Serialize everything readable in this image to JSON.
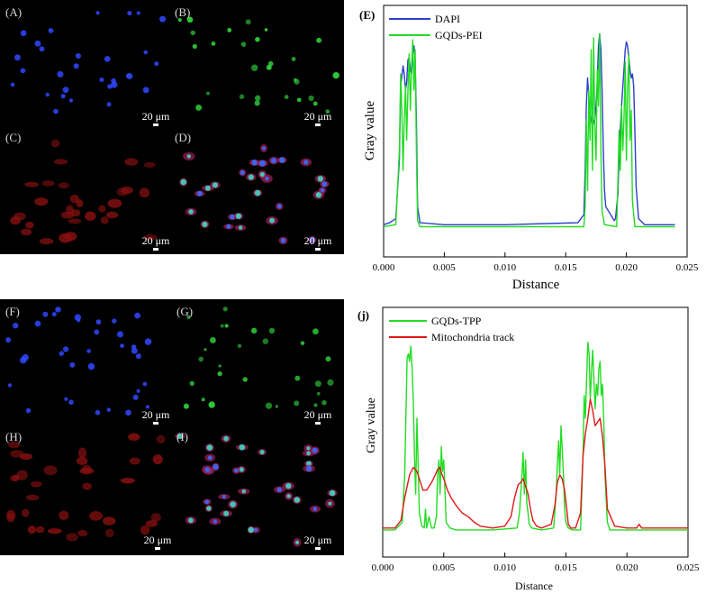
{
  "figure_top": {
    "panel_labels": [
      "(A)",
      "(B)",
      "(C)",
      "(D)"
    ],
    "scale_bar": "20 μm"
  },
  "figure_bottom": {
    "panel_labels": [
      "(F)",
      "(G)",
      "(H)",
      "(I)"
    ],
    "scale_bar": "20 μm"
  },
  "colors": {
    "dapi": "#2b3fc9",
    "gqds": "#22dd22",
    "mito": "#e01818"
  },
  "chart_data": [
    {
      "type": "line",
      "panel_label": "(E)",
      "xlabel": "Distance",
      "ylabel": "Gray value",
      "xlim": [
        0.0,
        0.025
      ],
      "xticks": [
        "0.000",
        "0.005",
        "0.010",
        "0.015",
        "0.020",
        "0.025"
      ],
      "legend_position": "top-left",
      "series": [
        {
          "name": "DAPI",
          "color": "#2b3fc9",
          "x": [
            0.0,
            0.0005,
            0.001,
            0.0013,
            0.0014,
            0.0016,
            0.0017,
            0.0018,
            0.0019,
            0.002,
            0.0021,
            0.0022,
            0.0023,
            0.0024,
            0.0025,
            0.0026,
            0.0027,
            0.0028,
            0.003,
            0.005,
            0.01,
            0.016,
            0.0165,
            0.0166,
            0.0167,
            0.0168,
            0.017,
            0.0172,
            0.0174,
            0.0175,
            0.0176,
            0.0177,
            0.0178,
            0.0179,
            0.018,
            0.0181,
            0.0182,
            0.0183,
            0.0185,
            0.0187,
            0.0189,
            0.019,
            0.0191,
            0.0192,
            0.0193,
            0.0194,
            0.0196,
            0.0198,
            0.0199,
            0.02,
            0.0201,
            0.0202,
            0.0203,
            0.0204,
            0.0205,
            0.0206,
            0.0207,
            0.0208,
            0.021,
            0.0215,
            0.024
          ],
          "y": [
            0.03,
            0.04,
            0.06,
            0.35,
            0.72,
            0.82,
            0.78,
            0.7,
            0.74,
            0.85,
            0.86,
            0.8,
            0.78,
            0.88,
            0.92,
            0.86,
            0.55,
            0.12,
            0.04,
            0.03,
            0.03,
            0.04,
            0.08,
            0.3,
            0.62,
            0.76,
            0.58,
            0.52,
            0.56,
            0.62,
            0.74,
            0.92,
            0.98,
            0.9,
            0.7,
            0.4,
            0.2,
            0.12,
            0.1,
            0.08,
            0.06,
            0.05,
            0.06,
            0.12,
            0.18,
            0.38,
            0.62,
            0.8,
            0.9,
            0.94,
            0.92,
            0.86,
            0.8,
            0.76,
            0.78,
            0.72,
            0.5,
            0.22,
            0.06,
            0.03,
            0.03
          ]
        },
        {
          "name": "GQDs-PEI",
          "color": "#22dd22",
          "x": [
            0.0,
            0.001,
            0.0013,
            0.0014,
            0.0015,
            0.0016,
            0.0017,
            0.0018,
            0.0019,
            0.002,
            0.0021,
            0.0022,
            0.0023,
            0.0024,
            0.0025,
            0.0026,
            0.0027,
            0.0028,
            0.003,
            0.01,
            0.0165,
            0.0166,
            0.0167,
            0.0168,
            0.0169,
            0.017,
            0.0171,
            0.0172,
            0.0173,
            0.0174,
            0.0175,
            0.0176,
            0.0177,
            0.0178,
            0.0179,
            0.018,
            0.0182,
            0.0192,
            0.0193,
            0.0194,
            0.0195,
            0.0196,
            0.0197,
            0.0198,
            0.0199,
            0.02,
            0.0201,
            0.0202,
            0.0203,
            0.0204,
            0.0205,
            0.0207,
            0.024
          ],
          "y": [
            0.02,
            0.03,
            0.4,
            0.78,
            0.6,
            0.3,
            0.55,
            0.72,
            0.45,
            0.7,
            0.88,
            0.6,
            0.82,
            0.95,
            0.7,
            0.9,
            0.4,
            0.05,
            0.02,
            0.02,
            0.02,
            0.12,
            0.55,
            0.2,
            0.7,
            0.45,
            0.9,
            0.3,
            0.96,
            0.5,
            0.35,
            0.8,
            0.62,
            0.98,
            0.4,
            0.1,
            0.03,
            0.02,
            0.25,
            0.5,
            0.3,
            0.62,
            0.4,
            0.55,
            0.84,
            0.35,
            0.7,
            0.88,
            0.45,
            0.6,
            0.15,
            0.02,
            0.02
          ]
        }
      ]
    },
    {
      "type": "line",
      "panel_label": "(j)",
      "xlabel": "Distance",
      "ylabel": "Gray value",
      "xlim": [
        0.0,
        0.025
      ],
      "xticks": [
        "0.000",
        "0.005",
        "0.010",
        "0.015",
        "0.020",
        "0.025"
      ],
      "legend_position": "top-left",
      "series": [
        {
          "name": "GQDs-TPP",
          "color": "#22dd22",
          "x": [
            0.0,
            0.001,
            0.0016,
            0.0018,
            0.002,
            0.0021,
            0.0022,
            0.0023,
            0.0024,
            0.0025,
            0.0026,
            0.0027,
            0.0028,
            0.003,
            0.0032,
            0.0034,
            0.0035,
            0.0036,
            0.0038,
            0.004,
            0.0042,
            0.0044,
            0.0045,
            0.0046,
            0.0047,
            0.0048,
            0.0049,
            0.005,
            0.0052,
            0.0055,
            0.006,
            0.009,
            0.011,
            0.0112,
            0.0114,
            0.0115,
            0.0116,
            0.0117,
            0.0118,
            0.0119,
            0.012,
            0.0122,
            0.013,
            0.014,
            0.0142,
            0.0143,
            0.0144,
            0.0145,
            0.0146,
            0.0147,
            0.0148,
            0.0149,
            0.015,
            0.0152,
            0.0155,
            0.0162,
            0.0164,
            0.0165,
            0.0166,
            0.0167,
            0.0168,
            0.0169,
            0.017,
            0.0171,
            0.0172,
            0.0173,
            0.0174,
            0.0175,
            0.0176,
            0.0177,
            0.0178,
            0.0179,
            0.018,
            0.0181,
            0.0182,
            0.0184,
            0.0186,
            0.02,
            0.025
          ],
          "y": [
            0.01,
            0.01,
            0.05,
            0.3,
            0.92,
            0.94,
            0.9,
            0.98,
            0.88,
            0.7,
            0.4,
            0.2,
            0.6,
            0.1,
            0.03,
            0.02,
            0.12,
            0.02,
            0.08,
            0.02,
            0.02,
            0.08,
            0.3,
            0.38,
            0.2,
            0.45,
            0.32,
            0.38,
            0.05,
            0.02,
            0.01,
            0.01,
            0.02,
            0.1,
            0.3,
            0.42,
            0.2,
            0.38,
            0.15,
            0.1,
            0.04,
            0.02,
            0.01,
            0.02,
            0.2,
            0.35,
            0.48,
            0.3,
            0.56,
            0.44,
            0.3,
            0.12,
            0.05,
            0.02,
            0.01,
            0.01,
            0.4,
            0.72,
            0.6,
            0.82,
            1.0,
            0.94,
            0.7,
            0.85,
            0.96,
            0.8,
            0.65,
            0.78,
            0.72,
            0.86,
            0.9,
            0.72,
            0.78,
            0.6,
            0.3,
            0.05,
            0.01,
            0.01,
            0.01
          ]
        },
        {
          "name": "Mitochondria track",
          "color": "#e01818",
          "x": [
            0.0,
            0.001,
            0.0015,
            0.0018,
            0.0022,
            0.0025,
            0.0028,
            0.003,
            0.0033,
            0.0036,
            0.004,
            0.0043,
            0.0045,
            0.0047,
            0.0048,
            0.005,
            0.0053,
            0.0056,
            0.006,
            0.0065,
            0.007,
            0.0075,
            0.008,
            0.009,
            0.01,
            0.0105,
            0.0108,
            0.0111,
            0.0113,
            0.0115,
            0.0117,
            0.0119,
            0.0121,
            0.0123,
            0.0126,
            0.013,
            0.0138,
            0.0141,
            0.0143,
            0.0145,
            0.0147,
            0.0149,
            0.0151,
            0.0152,
            0.0154,
            0.0158,
            0.0162,
            0.0164,
            0.0166,
            0.0168,
            0.017,
            0.0172,
            0.0174,
            0.0176,
            0.0178,
            0.018,
            0.0182,
            0.0184,
            0.019,
            0.02,
            0.0208,
            0.021,
            0.0212,
            0.0216,
            0.025
          ],
          "y": [
            0.02,
            0.02,
            0.06,
            0.18,
            0.3,
            0.34,
            0.32,
            0.28,
            0.22,
            0.22,
            0.26,
            0.3,
            0.33,
            0.34,
            0.31,
            0.28,
            0.22,
            0.18,
            0.14,
            0.1,
            0.08,
            0.05,
            0.03,
            0.02,
            0.03,
            0.08,
            0.18,
            0.25,
            0.26,
            0.28,
            0.24,
            0.2,
            0.12,
            0.06,
            0.03,
            0.02,
            0.04,
            0.14,
            0.26,
            0.3,
            0.28,
            0.22,
            0.1,
            0.04,
            0.02,
            0.02,
            0.1,
            0.4,
            0.52,
            0.6,
            0.7,
            0.64,
            0.56,
            0.58,
            0.6,
            0.5,
            0.35,
            0.12,
            0.03,
            0.02,
            0.02,
            0.04,
            0.02,
            0.02,
            0.02
          ]
        }
      ]
    }
  ]
}
